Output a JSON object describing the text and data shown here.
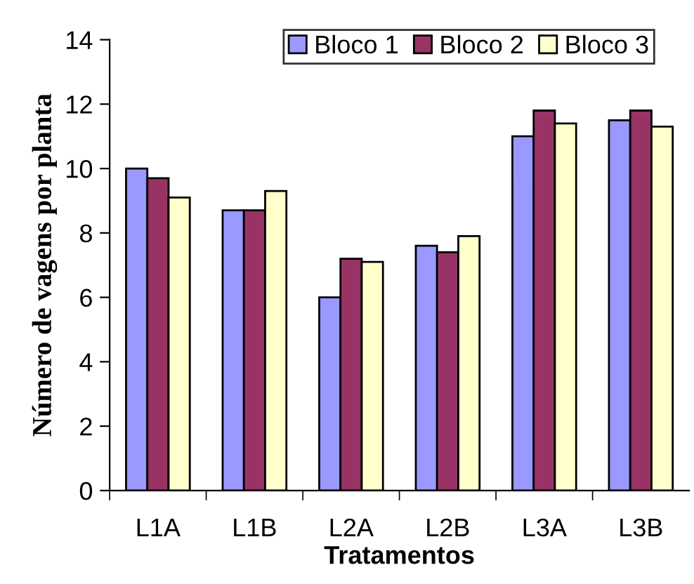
{
  "chart_data": {
    "type": "bar",
    "xlabel": "Tratamentos",
    "ylabel": "Número de vagens por planta",
    "categories": [
      "L1A",
      "L1B",
      "L2A",
      "L2B",
      "L3A",
      "L3B"
    ],
    "series": [
      {
        "name": "Bloco 1",
        "color": "#9999ff",
        "values": [
          10.0,
          8.7,
          6.0,
          7.6,
          11.0,
          11.5
        ]
      },
      {
        "name": "Bloco 2",
        "color": "#993366",
        "values": [
          9.7,
          8.7,
          7.2,
          7.4,
          11.8,
          11.8
        ]
      },
      {
        "name": "Bloco 3",
        "color": "#ffffcc",
        "values": [
          9.1,
          9.3,
          7.1,
          7.9,
          11.4,
          11.3
        ]
      }
    ],
    "ylim": [
      0,
      14
    ],
    "yticks": [
      0,
      2,
      4,
      6,
      8,
      10,
      12,
      14
    ],
    "grid": false,
    "legend": "top"
  }
}
